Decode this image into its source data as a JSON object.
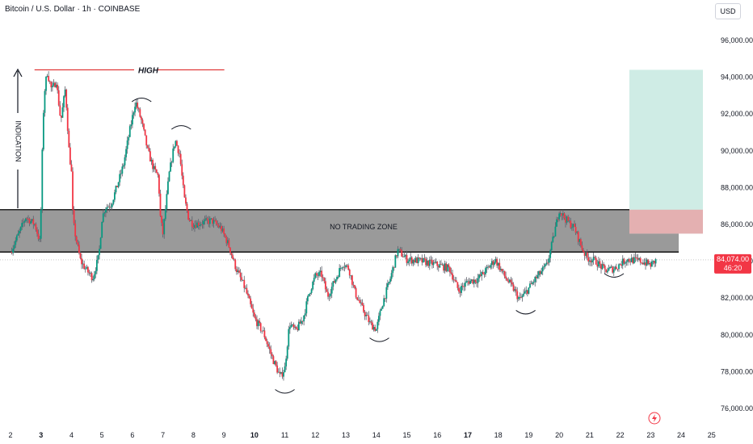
{
  "header": {
    "symbol_title": "Bitcoin / U.S. Dollar · 1h · COINBASE",
    "currency_button": "USD"
  },
  "price_badge": {
    "price": "84,074.00",
    "countdown": "46:20",
    "color": "#f23645"
  },
  "annotations": {
    "high_label": "HIGH",
    "indication_label": "INDICATION",
    "zone_label": "NO TRADING ZONE"
  },
  "colors": {
    "up": "#089981",
    "down": "#f23645",
    "wick": "#5d606b",
    "zone_fill": "#9a9a9a",
    "target_fill": "#cfece5",
    "stop_fill": "#e8a6a8",
    "high_line": "#e03a3a"
  },
  "chart_data": {
    "type": "candlestick",
    "symbol": "Bitcoin / U.S. Dollar",
    "interval": "1h",
    "exchange": "COINBASE",
    "currency": "USD",
    "ylim": [
      75000,
      97000
    ],
    "xlim": [
      2,
      25.5
    ],
    "y_ticks": [
      {
        "value": 76000,
        "label": "76,000.00"
      },
      {
        "value": 78000,
        "label": "78,000.00"
      },
      {
        "value": 80000,
        "label": "80,000.00"
      },
      {
        "value": 82000,
        "label": "82,000.00"
      },
      {
        "value": 84000,
        "label": "84,000.00"
      },
      {
        "value": 86000,
        "label": "86,000.00"
      },
      {
        "value": 88000,
        "label": "88,000.00"
      },
      {
        "value": 90000,
        "label": "90,000.00"
      },
      {
        "value": 92000,
        "label": "92,000.00"
      },
      {
        "value": 94000,
        "label": "94,000.00"
      },
      {
        "value": 96000,
        "label": "96,000.00"
      }
    ],
    "x_ticks": [
      {
        "value": 2,
        "label": "2",
        "bold": false
      },
      {
        "value": 3,
        "label": "3",
        "bold": true
      },
      {
        "value": 4,
        "label": "4",
        "bold": false
      },
      {
        "value": 5,
        "label": "5",
        "bold": false
      },
      {
        "value": 6,
        "label": "6",
        "bold": false
      },
      {
        "value": 7,
        "label": "7",
        "bold": false
      },
      {
        "value": 8,
        "label": "8",
        "bold": false
      },
      {
        "value": 9,
        "label": "9",
        "bold": false
      },
      {
        "value": 10,
        "label": "10",
        "bold": true
      },
      {
        "value": 11,
        "label": "11",
        "bold": false
      },
      {
        "value": 12,
        "label": "12",
        "bold": false
      },
      {
        "value": 13,
        "label": "13",
        "bold": false
      },
      {
        "value": 14,
        "label": "14",
        "bold": false
      },
      {
        "value": 15,
        "label": "15",
        "bold": false
      },
      {
        "value": 16,
        "label": "16",
        "bold": false
      },
      {
        "value": 17,
        "label": "17",
        "bold": true
      },
      {
        "value": 18,
        "label": "18",
        "bold": false
      },
      {
        "value": 19,
        "label": "19",
        "bold": false
      },
      {
        "value": 20,
        "label": "20",
        "bold": false
      },
      {
        "value": 21,
        "label": "21",
        "bold": false
      },
      {
        "value": 22,
        "label": "22",
        "bold": false
      },
      {
        "value": 23,
        "label": "23",
        "bold": false
      },
      {
        "value": 24,
        "label": "24",
        "bold": false
      },
      {
        "value": 25,
        "label": "25",
        "bold": false
      }
    ],
    "price_path": [
      [
        2.0,
        84500
      ],
      [
        2.3,
        85600
      ],
      [
        2.5,
        86400
      ],
      [
        2.8,
        86000
      ],
      [
        2.97,
        85000
      ],
      [
        3.0,
        86800
      ],
      [
        3.05,
        90500
      ],
      [
        3.1,
        93000
      ],
      [
        3.2,
        94300
      ],
      [
        3.35,
        93300
      ],
      [
        3.5,
        93800
      ],
      [
        3.65,
        91600
      ],
      [
        3.8,
        93400
      ],
      [
        3.92,
        90000
      ],
      [
        4.0,
        88800
      ],
      [
        4.05,
        86200
      ],
      [
        4.15,
        85200
      ],
      [
        4.3,
        84000
      ],
      [
        4.5,
        83500
      ],
      [
        4.7,
        83100
      ],
      [
        4.9,
        84300
      ],
      [
        5.0,
        86300
      ],
      [
        5.1,
        86900
      ],
      [
        5.3,
        87100
      ],
      [
        5.5,
        88100
      ],
      [
        5.7,
        89200
      ],
      [
        5.9,
        91000
      ],
      [
        6.1,
        92700
      ],
      [
        6.3,
        91600
      ],
      [
        6.5,
        90000
      ],
      [
        6.7,
        89000
      ],
      [
        6.85,
        88600
      ],
      [
        6.92,
        86300
      ],
      [
        7.0,
        85500
      ],
      [
        7.2,
        88700
      ],
      [
        7.4,
        90600
      ],
      [
        7.55,
        89800
      ],
      [
        7.7,
        87400
      ],
      [
        7.85,
        86300
      ],
      [
        8.0,
        86000
      ],
      [
        8.3,
        86100
      ],
      [
        8.6,
        86200
      ],
      [
        8.9,
        85800
      ],
      [
        9.15,
        84900
      ],
      [
        9.4,
        83600
      ],
      [
        9.7,
        82500
      ],
      [
        10.0,
        80900
      ],
      [
        10.3,
        80100
      ],
      [
        10.6,
        78700
      ],
      [
        10.85,
        77700
      ],
      [
        11.0,
        78200
      ],
      [
        11.15,
        80600
      ],
      [
        11.35,
        80200
      ],
      [
        11.6,
        80900
      ],
      [
        11.8,
        82300
      ],
      [
        12.0,
        83200
      ],
      [
        12.2,
        83300
      ],
      [
        12.4,
        82100
      ],
      [
        12.6,
        82800
      ],
      [
        12.9,
        83900
      ],
      [
        13.1,
        83600
      ],
      [
        13.3,
        82300
      ],
      [
        13.55,
        81400
      ],
      [
        13.8,
        80600
      ],
      [
        14.0,
        80300
      ],
      [
        14.2,
        81700
      ],
      [
        14.45,
        83000
      ],
      [
        14.7,
        84600
      ],
      [
        15.0,
        84100
      ],
      [
        15.5,
        84000
      ],
      [
        16.0,
        83800
      ],
      [
        16.4,
        83600
      ],
      [
        16.7,
        82400
      ],
      [
        17.0,
        82900
      ],
      [
        17.3,
        83000
      ],
      [
        17.6,
        83500
      ],
      [
        17.9,
        84100
      ],
      [
        18.2,
        83200
      ],
      [
        18.5,
        82500
      ],
      [
        18.7,
        81900
      ],
      [
        18.9,
        82300
      ],
      [
        19.2,
        83000
      ],
      [
        19.6,
        83800
      ],
      [
        19.8,
        85200
      ],
      [
        20.0,
        86800
      ],
      [
        20.2,
        86300
      ],
      [
        20.5,
        85800
      ],
      [
        20.75,
        84700
      ],
      [
        20.9,
        84200
      ],
      [
        21.2,
        84000
      ],
      [
        21.5,
        83500
      ],
      [
        21.8,
        83600
      ],
      [
        22.2,
        84100
      ],
      [
        22.7,
        84000
      ],
      [
        23.0,
        83800
      ],
      [
        23.2,
        84074
      ]
    ],
    "series": [
      {
        "name": "HIGH",
        "type": "hline",
        "value": 94400,
        "x_range": [
          3.0,
          9.2
        ]
      },
      {
        "name": "NO TRADING ZONE",
        "type": "band",
        "y_range": [
          84500,
          86800
        ],
        "x_range": [
          2.0,
          24.0
        ]
      },
      {
        "name": "target",
        "type": "box",
        "y_range": [
          85500,
          94400
        ],
        "x_range": [
          22.0,
          24.0
        ]
      },
      {
        "name": "stop",
        "type": "box",
        "y_range": [
          85500,
          86800
        ],
        "x_range": [
          22.0,
          24.0
        ]
      }
    ],
    "arcs": [
      {
        "x": 6.3,
        "y": 92800,
        "dir": "up"
      },
      {
        "x": 7.6,
        "y": 91300,
        "dir": "up"
      },
      {
        "x": 11.0,
        "y": 76900,
        "dir": "down"
      },
      {
        "x": 14.1,
        "y": 79700,
        "dir": "down"
      },
      {
        "x": 18.9,
        "y": 81200,
        "dir": "down"
      },
      {
        "x": 21.8,
        "y": 83200,
        "dir": "down"
      }
    ],
    "last_price": 84074,
    "title": "Bitcoin / U.S. Dollar · 1h · COINBASE",
    "grid": false
  }
}
